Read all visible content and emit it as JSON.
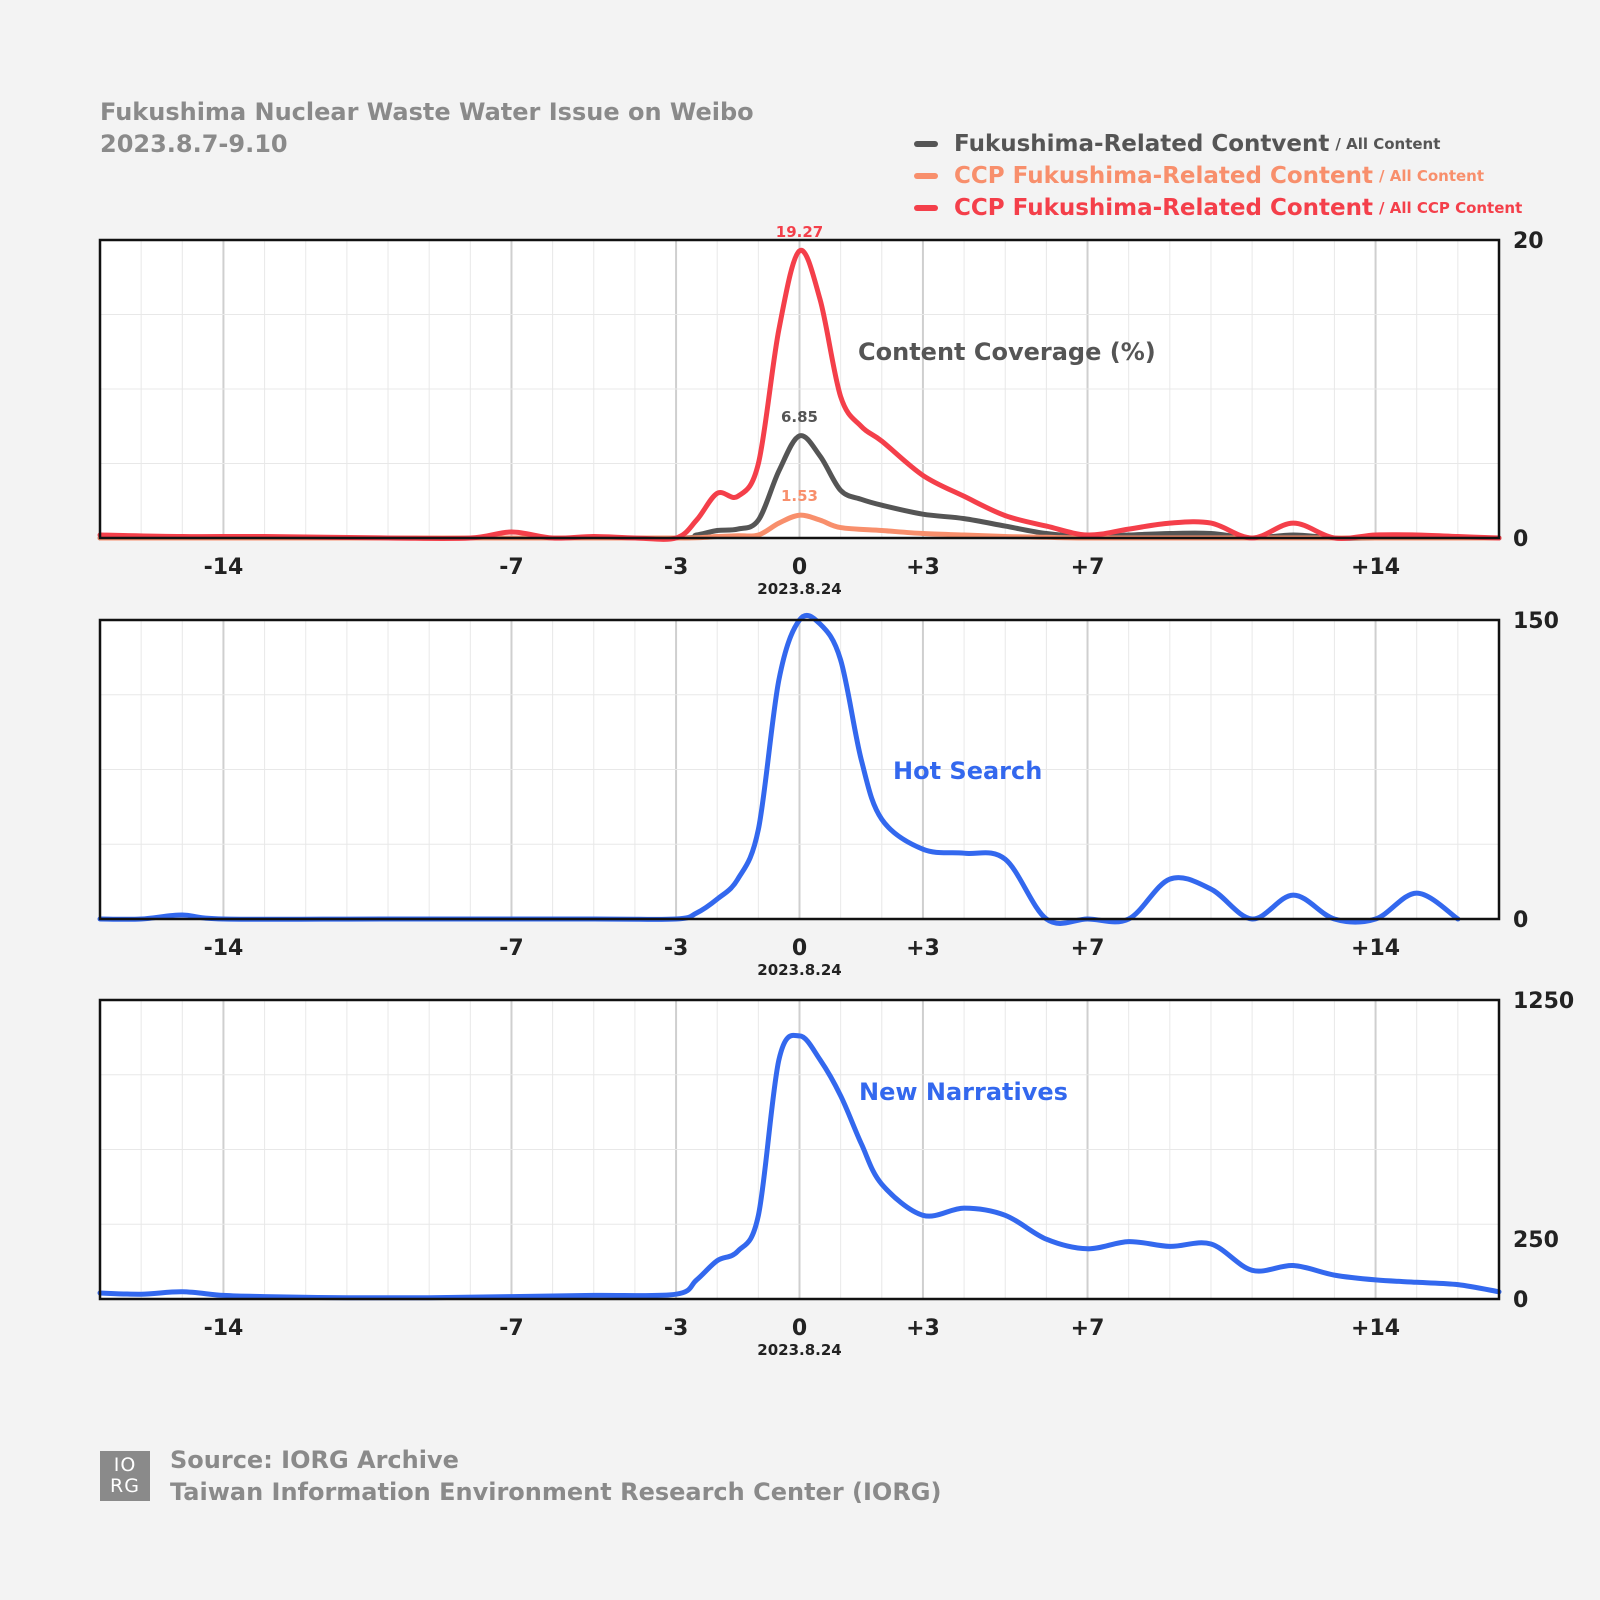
{
  "header": {
    "title": "Fukushima Nuclear Waste Water Issue on Weibo",
    "subtitle": "2023.8.7-9.10"
  },
  "legend": [
    {
      "label": "Fukushima-Related Contvent",
      "sub": "/ All Content",
      "color": "#555555"
    },
    {
      "label": "CCP Fukushima-Related Content",
      "sub": "/ All Content",
      "color": "#f88f6c"
    },
    {
      "label": "CCP Fukushima-Related Content",
      "sub": "/ All CCP Content",
      "color": "#f43f4a"
    }
  ],
  "footer": {
    "logo_top": "IO",
    "logo_bottom": "RG",
    "source": "Source: IORG Archive",
    "org": "Taiwan Information Environment Research Center (IORG)"
  },
  "chart_data": [
    {
      "type": "line",
      "title": "Content Coverage (%)",
      "xlim": [
        -17,
        17
      ],
      "ylim": [
        0,
        20
      ],
      "y_ticks": [
        0,
        20
      ],
      "x_ticks": [
        -14,
        -7,
        -3,
        0,
        3,
        7,
        14
      ],
      "x_tick_labels": [
        "-14",
        "-7",
        "-3",
        "0",
        "+3",
        "+7",
        "+14"
      ],
      "x_sublabel": "2023.8.24",
      "grid": true,
      "series": [
        {
          "name": "Fukushima-Related Contvent / All Content",
          "color": "#555555",
          "peak_label": "6.85",
          "x": [
            -17,
            -14,
            -7,
            -3,
            -2.5,
            -2,
            -1.5,
            -1,
            -0.5,
            0,
            0.5,
            1,
            1.5,
            2,
            3,
            4,
            5,
            6,
            7,
            8,
            9,
            10,
            11,
            12,
            13,
            14,
            15,
            16,
            17
          ],
          "y": [
            0,
            0,
            0,
            0,
            0.2,
            0.5,
            0.6,
            1.2,
            4.5,
            6.85,
            5.5,
            3.2,
            2.6,
            2.2,
            1.6,
            1.3,
            0.8,
            0.3,
            0.1,
            0.2,
            0.3,
            0.3,
            0,
            0.2,
            0,
            0,
            0,
            0,
            0
          ]
        },
        {
          "name": "CCP Fukushima-Related Content / All Content",
          "color": "#f88f6c",
          "peak_label": "1.53",
          "x": [
            -17,
            -14,
            -7,
            -3,
            -2,
            -1.5,
            -1,
            -0.5,
            0,
            0.5,
            1,
            2,
            3,
            4,
            5,
            6,
            7,
            10,
            14,
            17
          ],
          "y": [
            0,
            0,
            0,
            0,
            0.1,
            0.15,
            0.2,
            1.0,
            1.53,
            1.2,
            0.7,
            0.5,
            0.3,
            0.2,
            0.1,
            0.05,
            0,
            0,
            0,
            0
          ]
        },
        {
          "name": "CCP Fukushima-Related Content / All CCP Content",
          "color": "#f43f4a",
          "peak_label": "19.27",
          "x": [
            -17,
            -15,
            -13,
            -10,
            -8,
            -7,
            -6,
            -5,
            -4,
            -3,
            -2.5,
            -2,
            -1.5,
            -1,
            -0.5,
            0,
            0.5,
            1,
            1.5,
            2,
            3,
            4,
            5,
            6,
            7,
            8,
            9,
            10,
            11,
            12,
            13,
            14,
            15,
            16,
            17
          ],
          "y": [
            0.2,
            0.1,
            0.1,
            0,
            0,
            0.4,
            0,
            0.1,
            0,
            0,
            1.2,
            3.0,
            2.8,
            5.0,
            14.0,
            19.27,
            16.0,
            9.5,
            7.5,
            6.5,
            4.2,
            2.8,
            1.5,
            0.8,
            0.2,
            0.6,
            1.0,
            1.0,
            0,
            1.0,
            0,
            0.2,
            0.2,
            0.1,
            0
          ]
        }
      ]
    },
    {
      "type": "line",
      "title": "Hot Search",
      "xlim": [
        -17,
        17
      ],
      "ylim": [
        0,
        150
      ],
      "y_ticks": [
        0,
        150
      ],
      "x_ticks": [
        -14,
        -7,
        -3,
        0,
        3,
        7,
        14
      ],
      "x_tick_labels": [
        "-14",
        "-7",
        "-3",
        "0",
        "+3",
        "+7",
        "+14"
      ],
      "x_sublabel": "2023.8.24",
      "grid": true,
      "series": [
        {
          "name": "Hot Search",
          "color": "#3368ee",
          "x": [
            -17,
            -16,
            -15,
            -14,
            -10,
            -5,
            -3,
            -2.5,
            -2,
            -1.5,
            -1,
            -0.5,
            0,
            0.5,
            1,
            1.5,
            2,
            3,
            4,
            5,
            6,
            7,
            8,
            9,
            10,
            11,
            12,
            13,
            14,
            15,
            16
          ],
          "y": [
            0,
            0,
            2,
            0,
            0,
            0,
            0,
            3,
            10,
            20,
            45,
            120,
            150,
            148,
            130,
            80,
            50,
            35,
            33,
            30,
            0,
            0,
            0,
            20,
            15,
            0,
            12,
            0,
            0,
            13,
            0
          ]
        }
      ]
    },
    {
      "type": "line",
      "title": "New Narratives",
      "xlim": [
        -17,
        17
      ],
      "ylim": [
        0,
        1250
      ],
      "y_ticks": [
        0,
        250,
        1250
      ],
      "x_ticks": [
        -14,
        -7,
        -3,
        0,
        3,
        7,
        14
      ],
      "x_tick_labels": [
        "-14",
        "-7",
        "-3",
        "0",
        "+3",
        "+7",
        "+14"
      ],
      "x_sublabel": "2023.8.24",
      "grid": true,
      "series": [
        {
          "name": "New Narratives",
          "color": "#3368ee",
          "x": [
            -17,
            -16,
            -15,
            -14,
            -13,
            -11,
            -9,
            -7,
            -5,
            -3,
            -2.5,
            -2,
            -1.5,
            -1,
            -0.5,
            0,
            0.5,
            1,
            1.5,
            2,
            3,
            4,
            5,
            6,
            7,
            8,
            9,
            10,
            11,
            12,
            13,
            14,
            15,
            16,
            17
          ],
          "y": [
            25,
            20,
            30,
            15,
            10,
            5,
            5,
            10,
            15,
            20,
            80,
            160,
            200,
            350,
            1000,
            1100,
            1000,
            850,
            650,
            480,
            350,
            380,
            350,
            250,
            210,
            240,
            220,
            230,
            120,
            140,
            100,
            80,
            70,
            60,
            30
          ]
        }
      ]
    }
  ]
}
